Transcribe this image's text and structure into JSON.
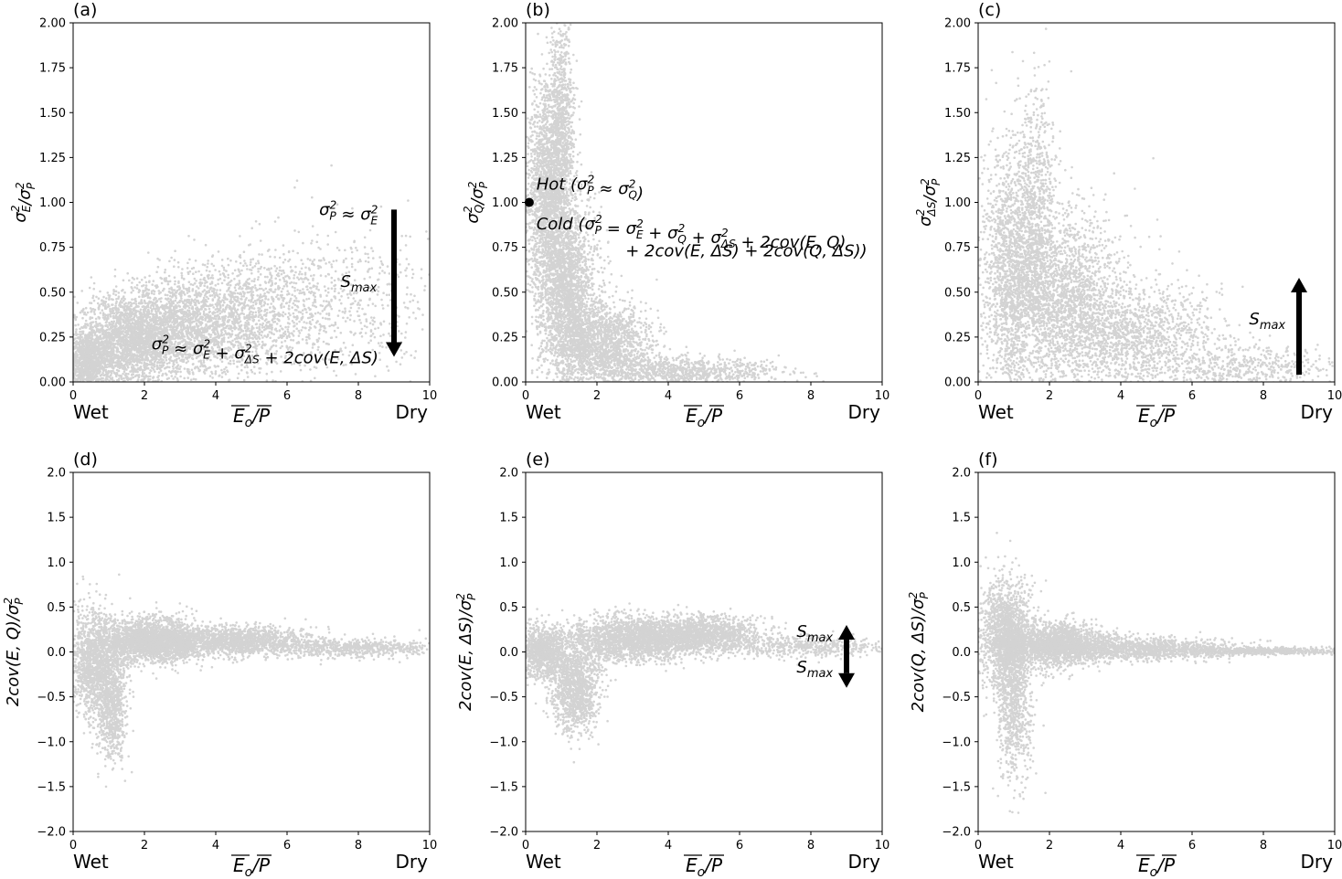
{
  "figure": {
    "wet_label": "Wet",
    "dry_label": "Dry",
    "xlabel": "E₀/P̅"
  },
  "chart_data": [
    {
      "panel": "(a)",
      "type": "scatter",
      "ylabel": "σ²_E/σ²_P",
      "xlabel": "E_o/P",
      "xlim": [
        0,
        10
      ],
      "ylim": [
        0,
        2
      ],
      "xticks": [
        "0",
        "2",
        "4",
        "6",
        "8",
        "10"
      ],
      "yticks": [
        "0.00",
        "0.25",
        "0.50",
        "0.75",
        "1.00",
        "1.25",
        "1.50",
        "1.75",
        "2.00"
      ],
      "point_color": "#d3d3d3",
      "annotations": [
        {
          "text": "σ²_P ≈ σ²_E",
          "x": 6.9,
          "y": 0.93
        },
        {
          "text": "S_max",
          "x": 7.5,
          "y": 0.53
        },
        {
          "text": "σ²_P ≈ σ²_E + σ²_ΔS + 2cov(E, ΔS)",
          "x": 2.2,
          "y": 0.18
        }
      ],
      "arrow": {
        "x": 9,
        "y_from": 0.96,
        "y_to": 0.14,
        "direction": "down"
      },
      "cloud": [
        {
          "x": 0.4,
          "y": 0.1,
          "sx": 0.3,
          "sy": 0.08,
          "n": 900
        },
        {
          "x": 1.5,
          "y": 0.22,
          "sx": 0.8,
          "sy": 0.12,
          "n": 2200
        },
        {
          "x": 3.0,
          "y": 0.3,
          "sx": 1.0,
          "sy": 0.14,
          "n": 1800
        },
        {
          "x": 5.0,
          "y": 0.38,
          "sx": 1.2,
          "sy": 0.17,
          "n": 1200
        },
        {
          "x": 7.8,
          "y": 0.45,
          "sx": 1.3,
          "sy": 0.2,
          "n": 500
        }
      ]
    },
    {
      "panel": "(b)",
      "type": "scatter",
      "ylabel": "σ²_Q/σ²_P",
      "xlabel": "E_o/P",
      "xlim": [
        0,
        10
      ],
      "ylim": [
        0,
        2
      ],
      "xticks": [
        "0",
        "2",
        "4",
        "6",
        "8",
        "10"
      ],
      "yticks": [
        "0.00",
        "0.25",
        "0.50",
        "0.75",
        "1.00",
        "1.25",
        "1.50",
        "1.75",
        "2.00"
      ],
      "point_color": "#d3d3d3",
      "annotations": [
        {
          "text": "Hot (σ²_P ≈ σ²_Q)",
          "x": 0.3,
          "y": 1.07
        },
        {
          "text": "Cold (σ²_P = σ²_E + σ²_Q + σ²_ΔS + 2cov(E, Q)",
          "x": 0.3,
          "y": 0.85
        },
        {
          "text": "+ 2cov(E, ΔS) + 2cov(Q, ΔS))",
          "x": 2.8,
          "y": 0.7
        }
      ],
      "marker": {
        "x": 0.1,
        "y": 1.0
      },
      "cloud": [
        {
          "x": 0.6,
          "y": 1.05,
          "sx": 0.3,
          "sy": 0.3,
          "n": 1800
        },
        {
          "x": 1.0,
          "y": 1.4,
          "sx": 0.18,
          "sy": 0.3,
          "n": 900
        },
        {
          "x": 1.2,
          "y": 0.5,
          "sx": 0.4,
          "sy": 0.25,
          "n": 2200
        },
        {
          "x": 2.2,
          "y": 0.2,
          "sx": 0.7,
          "sy": 0.12,
          "n": 1600
        },
        {
          "x": 4.5,
          "y": 0.06,
          "sx": 1.4,
          "sy": 0.04,
          "n": 900
        }
      ]
    },
    {
      "panel": "(c)",
      "type": "scatter",
      "ylabel": "σ²_ΔS/σ²_P",
      "xlabel": "E_o/P",
      "xlim": [
        0,
        10
      ],
      "ylim": [
        0,
        2
      ],
      "xticks": [
        "0",
        "2",
        "4",
        "6",
        "8",
        "10"
      ],
      "yticks": [
        "0.00",
        "0.25",
        "0.50",
        "0.75",
        "1.00",
        "1.25",
        "1.50",
        "1.75",
        "2.00"
      ],
      "point_color": "#d3d3d3",
      "annotations": [
        {
          "text": "S_max",
          "x": 7.6,
          "y": 0.32
        }
      ],
      "arrow": {
        "x": 9,
        "y_from": 0.04,
        "y_to": 0.58,
        "direction": "up"
      },
      "cloud": [
        {
          "x": 0.9,
          "y": 0.6,
          "sx": 0.4,
          "sy": 0.35,
          "n": 1500
        },
        {
          "x": 1.6,
          "y": 0.9,
          "sx": 0.3,
          "sy": 0.35,
          "n": 900
        },
        {
          "x": 2.4,
          "y": 0.45,
          "sx": 0.8,
          "sy": 0.25,
          "n": 2000
        },
        {
          "x": 4.5,
          "y": 0.25,
          "sx": 1.1,
          "sy": 0.15,
          "n": 1300
        },
        {
          "x": 7.5,
          "y": 0.08,
          "sx": 1.2,
          "sy": 0.06,
          "n": 500
        }
      ]
    },
    {
      "panel": "(d)",
      "type": "scatter",
      "ylabel": "2cov(E, Q)/σ²_P",
      "xlabel": "E_o/P",
      "xlim": [
        0,
        10
      ],
      "ylim": [
        -2,
        2
      ],
      "xticks": [
        "0",
        "2",
        "4",
        "6",
        "8",
        "10"
      ],
      "yticks": [
        "−2.0",
        "−1.5",
        "−1.0",
        "−0.5",
        "0.0",
        "0.5",
        "1.0",
        "1.5",
        "2.0"
      ],
      "point_color": "#d3d3d3",
      "annotations": [],
      "cloud": [
        {
          "x": 0.6,
          "y": -0.15,
          "sx": 0.35,
          "sy": 0.3,
          "n": 1400
        },
        {
          "x": 1.1,
          "y": -0.6,
          "sx": 0.2,
          "sy": 0.3,
          "n": 700
        },
        {
          "x": 2.2,
          "y": 0.12,
          "sx": 0.7,
          "sy": 0.12,
          "n": 2200
        },
        {
          "x": 4.5,
          "y": 0.12,
          "sx": 1.2,
          "sy": 0.08,
          "n": 1600
        },
        {
          "x": 7.8,
          "y": 0.04,
          "sx": 1.2,
          "sy": 0.05,
          "n": 600
        }
      ]
    },
    {
      "panel": "(e)",
      "type": "scatter",
      "ylabel": "2cov(E, ΔS)/σ²_P",
      "xlabel": "E_o/P",
      "xlim": [
        0,
        10
      ],
      "ylim": [
        -2,
        2
      ],
      "xticks": [
        "0",
        "2",
        "4",
        "6",
        "8",
        "10"
      ],
      "yticks": [
        "−2.0",
        "−1.5",
        "−1.0",
        "−0.5",
        "0.0",
        "0.5",
        "1.0",
        "1.5",
        "2.0"
      ],
      "point_color": "#d3d3d3",
      "annotations": [
        {
          "text": "S_max",
          "x": 7.6,
          "y": 0.17
        },
        {
          "text": "S_max",
          "x": 7.6,
          "y": -0.23
        }
      ],
      "arrow_up": {
        "x": 9,
        "y_from": 0.0,
        "y_to": 0.3
      },
      "arrow_down": {
        "x": 9,
        "y_from": 0.0,
        "y_to": -0.4
      },
      "cloud": [
        {
          "x": 0.5,
          "y": 0.0,
          "sx": 0.35,
          "sy": 0.15,
          "n": 1000
        },
        {
          "x": 1.4,
          "y": -0.4,
          "sx": 0.35,
          "sy": 0.25,
          "n": 1200
        },
        {
          "x": 3.0,
          "y": 0.15,
          "sx": 0.9,
          "sy": 0.12,
          "n": 2000
        },
        {
          "x": 5.0,
          "y": 0.2,
          "sx": 0.8,
          "sy": 0.1,
          "n": 1300
        },
        {
          "x": 7.8,
          "y": 0.06,
          "sx": 1.2,
          "sy": 0.06,
          "n": 500
        }
      ]
    },
    {
      "panel": "(f)",
      "type": "scatter",
      "ylabel": "2cov(Q, ΔS)/σ²_P",
      "xlabel": "E_o/P",
      "xlim": [
        0,
        10
      ],
      "ylim": [
        -2,
        2
      ],
      "xticks": [
        "0",
        "2",
        "4",
        "6",
        "8",
        "10"
      ],
      "yticks": [
        "−2.0",
        "−1.5",
        "−1.0",
        "−0.5",
        "0.0",
        "0.5",
        "1.0",
        "1.5",
        "2.0"
      ],
      "point_color": "#d3d3d3",
      "annotations": [],
      "cloud": [
        {
          "x": 0.8,
          "y": 0.15,
          "sx": 0.35,
          "sy": 0.3,
          "n": 1500
        },
        {
          "x": 1.0,
          "y": -0.55,
          "sx": 0.25,
          "sy": 0.45,
          "n": 800
        },
        {
          "x": 2.2,
          "y": 0.08,
          "sx": 0.7,
          "sy": 0.12,
          "n": 1800
        },
        {
          "x": 4.5,
          "y": 0.03,
          "sx": 1.3,
          "sy": 0.06,
          "n": 1300
        },
        {
          "x": 8.0,
          "y": 0.01,
          "sx": 1.2,
          "sy": 0.02,
          "n": 600
        }
      ]
    }
  ]
}
